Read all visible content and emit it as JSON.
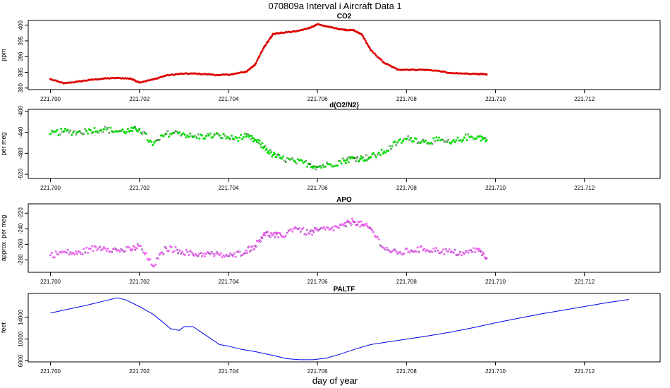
{
  "figure": {
    "title": "070809a   Interval i Aircraft Data 1",
    "xlabel": "day of year"
  },
  "chart_data": [
    {
      "type": "scatter",
      "title": "CO2",
      "ylabel": "ppm",
      "color": "#dd0000",
      "xlim": [
        221.6995,
        221.7137
      ],
      "ylim": [
        379.5,
        401.5
      ],
      "xticks": [
        "221.700",
        "221.702",
        "221.704",
        "221.706",
        "221.708",
        "221.710",
        "221.712"
      ],
      "yticks": [
        "380",
        "385",
        "390",
        "395",
        "400"
      ],
      "x": [
        221.7,
        221.7003,
        221.7006,
        221.7009,
        221.7012,
        221.7015,
        221.7018,
        221.702,
        221.7023,
        221.7026,
        221.7029,
        221.7032,
        221.7035,
        221.7038,
        221.7041,
        221.7044,
        221.7046,
        221.7048,
        221.705,
        221.7052,
        221.7055,
        221.7058,
        221.706,
        221.7063,
        221.7066,
        221.7068,
        221.707,
        221.7072,
        221.7075,
        221.7078,
        221.7081,
        221.7084,
        221.7087,
        221.709,
        221.7093,
        221.7096,
        221.7098
      ],
      "y": [
        382.8,
        381.5,
        382.0,
        382.6,
        383.0,
        383.2,
        383.0,
        381.8,
        382.7,
        384.0,
        384.5,
        384.6,
        384.4,
        384.1,
        384.4,
        385.2,
        387.5,
        393.0,
        397.2,
        397.6,
        398.0,
        399.0,
        400.3,
        399.3,
        398.5,
        398.4,
        397.0,
        392.0,
        388.0,
        385.9,
        385.8,
        385.8,
        385.5,
        384.7,
        384.6,
        384.5,
        384.3
      ]
    },
    {
      "type": "scatter",
      "title": "d(O2/N2)",
      "ylabel": "per meg",
      "color": "#00dd00",
      "xlim": [
        221.6995,
        221.7137
      ],
      "ylim": [
        -528,
        -396
      ],
      "xticks": [
        "221.700",
        "221.702",
        "221.704",
        "221.706",
        "221.708",
        "221.710",
        "221.712"
      ],
      "yticks": [
        "-400",
        "-440",
        "-480",
        "-520"
      ],
      "x": [
        221.7,
        221.7003,
        221.7006,
        221.7009,
        221.7012,
        221.7015,
        221.7018,
        221.702,
        221.7023,
        221.7026,
        221.7029,
        221.7032,
        221.7035,
        221.7038,
        221.7041,
        221.7044,
        221.7046,
        221.7048,
        221.705,
        221.7052,
        221.7055,
        221.7058,
        221.706,
        221.7063,
        221.7066,
        221.7068,
        221.707,
        221.7072,
        221.7075,
        221.7078,
        221.7081,
        221.7084,
        221.7087,
        221.709,
        221.7093,
        221.7096,
        221.7098
      ],
      "y": [
        -443,
        -438,
        -440,
        -436,
        -434,
        -438,
        -437,
        -433,
        -464,
        -443,
        -440,
        -449,
        -447,
        -446,
        -452,
        -448,
        -455,
        -468,
        -483,
        -490,
        -496,
        -500,
        -506,
        -501,
        -494,
        -489,
        -490,
        -487,
        -477,
        -459,
        -451,
        -458,
        -455,
        -461,
        -450,
        -448,
        -454
      ]
    },
    {
      "type": "scatter",
      "title": "APO",
      "ylabel": "approx. per meg",
      "color": "#ee66ee",
      "xlim": [
        221.6995,
        221.7137
      ],
      "ylim": [
        -296,
        -208
      ],
      "xticks": [
        "221.700",
        "221.702",
        "221.704",
        "221.706",
        "221.708",
        "221.710",
        "221.712"
      ],
      "yticks": [
        "-220",
        "-240",
        "-260",
        "-280"
      ],
      "x": [
        221.7,
        221.7003,
        221.7006,
        221.7009,
        221.7012,
        221.7015,
        221.7018,
        221.702,
        221.7023,
        221.7026,
        221.7029,
        221.7032,
        221.7035,
        221.7038,
        221.7041,
        221.7044,
        221.7046,
        221.7048,
        221.705,
        221.7052,
        221.7055,
        221.7058,
        221.706,
        221.7063,
        221.7066,
        221.7068,
        221.707,
        221.7072,
        221.7075,
        221.7078,
        221.7081,
        221.7084,
        221.7087,
        221.709,
        221.7093,
        221.7096,
        221.7098
      ],
      "y": [
        -274,
        -270,
        -272,
        -266,
        -264,
        -268,
        -267,
        -262,
        -288,
        -265,
        -268,
        -273,
        -272,
        -274,
        -275,
        -268,
        -262,
        -246,
        -248,
        -250,
        -238,
        -246,
        -242,
        -240,
        -236,
        -230,
        -235,
        -240,
        -265,
        -272,
        -268,
        -266,
        -268,
        -270,
        -272,
        -266,
        -278
      ]
    },
    {
      "type": "line",
      "title": "PALTF",
      "ylabel": "feet",
      "color": "#0000ee",
      "xlim": [
        221.6995,
        221.7137
      ],
      "ylim": [
        5800,
        18400
      ],
      "xticks": [
        "221.700",
        "221.702",
        "221.704",
        "221.706",
        "221.708",
        "221.710",
        "221.712"
      ],
      "yticks": [
        "6000",
        "10000",
        "14000"
      ],
      "x": [
        221.7,
        221.7004,
        221.7008,
        221.7012,
        221.7015,
        221.7017,
        221.702,
        221.7023,
        221.7025,
        221.7027,
        221.7029,
        221.703,
        221.7032,
        221.7034,
        221.7036,
        221.7038,
        221.704,
        221.7043,
        221.7046,
        221.705,
        221.7053,
        221.7056,
        221.7059,
        221.7062,
        221.7065,
        221.7069,
        221.7072,
        221.7076,
        221.708,
        221.7085,
        221.709,
        221.7095,
        221.71,
        221.7105,
        221.711,
        221.7115,
        221.712,
        221.7125,
        221.713
      ],
      "y": [
        14800,
        15500,
        16200,
        17000,
        17600,
        17200,
        16000,
        14600,
        13300,
        11900,
        11600,
        12300,
        12300,
        11200,
        10100,
        9000,
        8700,
        8100,
        7700,
        7000,
        6400,
        6200,
        6200,
        6500,
        7200,
        8300,
        9000,
        9500,
        10000,
        10600,
        11300,
        12100,
        13000,
        13800,
        14600,
        15300,
        16000,
        16700,
        17300
      ]
    }
  ]
}
